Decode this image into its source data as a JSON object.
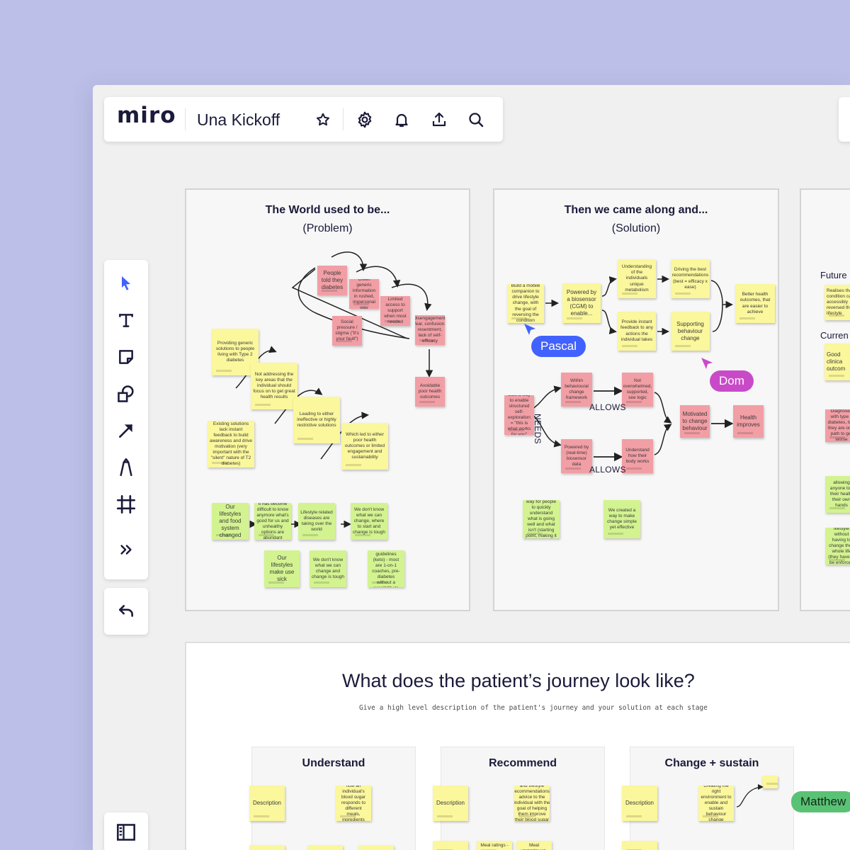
{
  "app": {
    "logo": "miro",
    "board_name": "Una Kickoff",
    "icons": [
      "star-icon",
      "gear-icon",
      "bell-icon",
      "upload-icon",
      "search-icon"
    ]
  },
  "toolbar": {
    "tools": [
      "select-icon",
      "text-icon",
      "sticky-note-icon",
      "shapes-icon",
      "arrow-icon",
      "pen-icon",
      "frame-icon",
      "more-icon"
    ],
    "undo": "undo-icon",
    "sidebar": "sidebar-icon"
  },
  "frame_problem": {
    "title": "The World used to be...",
    "subtitle": "(Problem)",
    "notes": [
      "People told they diabetes",
      "Given generic information in rushed, impersonal way",
      "Limited access to support when most needed",
      "Social pressure / stigma (\"it's your fault\")",
      "Disengagement, fear, confusion, resentment, lack of self-efficacy",
      "Avoidable poor health outcomes",
      "Providing generic solutions to people living with Type 2 diabetes",
      "Not addressing the key areas that the individual should focus on to get great health results",
      "Leading to either ineffective or highly restrictive solutions",
      "Which led to either poor health outcomes or limited engagement and sustainability",
      "Existing solutions lack instant feedback to build awareness and drive motivation (very important with the \"silent\" nature of T2 diabetes)",
      "Our lifestyles and food system changed",
      "It has become difficult to know anymore what's good for us and unhealthy options are abundant",
      "Lifestyle related diseases are taking over the world",
      "We don't know what we can change, where to start and change is tough",
      "Our lifestyles make use sick",
      "We don't know what we can change and change is tough",
      "Some go crazy and follow strict nutritional guidelines (keto) - most are 1-on-1 coaches, pre-diabetes without a possibility to take action - counter"
    ]
  },
  "frame_solution": {
    "title": "Then we came along and...",
    "subtitle": "(Solution)",
    "notes": [
      "Build a mobile companion to drive lifestyle change, with the goal of reversing the condition",
      "Powered by a biosensor (CGM) to enable...",
      "Understanding of the individuals unique metabolism",
      "Driving the best recommendations (best = efficacy x ease)",
      "Provide instant feedback to any actions the individual takes",
      "Supporting behaviour change",
      "Better health outcomes, that are easier to achieve",
      "Built a way to enable structured self-exploration = \"this is what works for you\"",
      "Within behavioural change framework",
      "Not overwhelmed, supported, see logic",
      "Motivated to change behaviour",
      "Health improves",
      "Powered by (real-time) biosensor data",
      "Understand how their body works",
      "We created a way for people to quickly understand what is going well and what isn't (starting point, making it achievable)",
      "We created a way to make change simple yet effective"
    ],
    "labels": {
      "needs": "NEEDS",
      "allows": "ALLOWS"
    }
  },
  "frame_third": {
    "labels": [
      "Future",
      "Curren"
    ],
    "notes": [
      "Realises that condition can accessibly reversed thro lifestyle",
      "Good clinica outcom",
      "Diagnosed with type 2 diabetes, told they are on a path to get worse",
      "allowing anyone to t their health their own hands",
      "People feel that they can change their lifestyle without having to change their whole life (they have to be enforced at the flexible level - be healthy"
    ]
  },
  "collaborators": [
    {
      "name": "Pascal",
      "color": "#4262ff"
    },
    {
      "name": "Dom",
      "color": "#c94ac9"
    },
    {
      "name": "Matthew",
      "color": "#5ac274"
    }
  ],
  "journey": {
    "title": "What does the patient’s journey look like?",
    "subtitle": "Give a high level description of the patient's journey and your solution at each stage",
    "stages": [
      {
        "title": "Understand",
        "description": "Description",
        "note": "Understand how an individual's blood sugar responds to different meals, ingredients and activities"
      },
      {
        "title": "Recommend",
        "description": "Description",
        "note": "Provide dietary and lifestyle recommendations/ advice to the individual with the goal of helping them improve their blood sugar control",
        "extra": [
          "Meal ratings -",
          "Meal experiment"
        ]
      },
      {
        "title": "Change + sustain",
        "description": "Description",
        "note": "Creating the right environment to enable and sustain behaviour change"
      }
    ]
  },
  "colors": {
    "background": "#bcc0e8",
    "canvas": "#f0f0f0",
    "sticky_yellow": "#fbf79c",
    "sticky_pink": "#f29ea5",
    "sticky_green": "#d3f390",
    "accent_blue": "#4262ff"
  }
}
